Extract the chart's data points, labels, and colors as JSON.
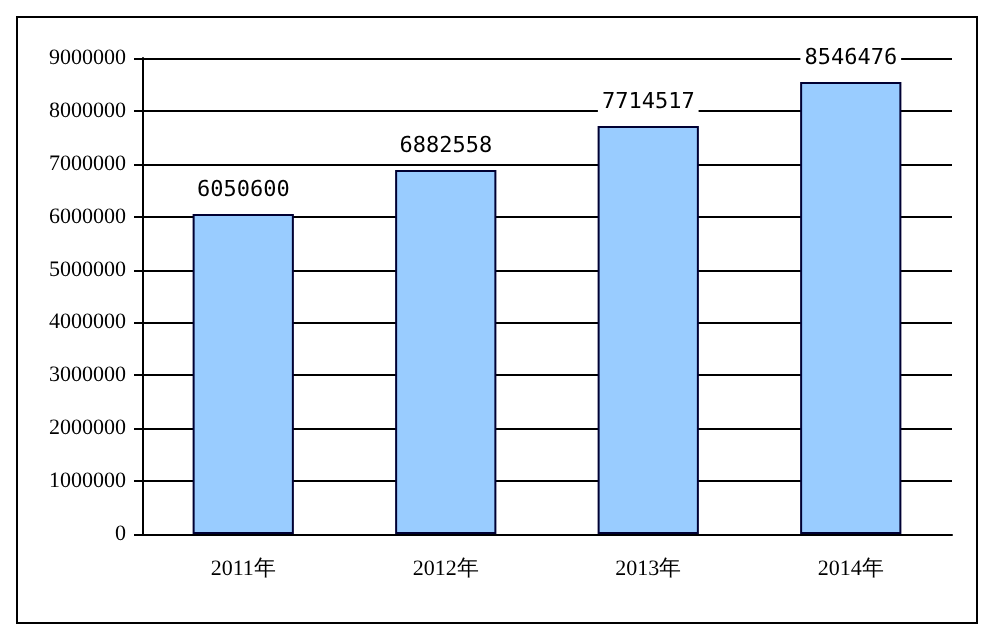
{
  "chart_data": {
    "type": "bar",
    "categories": [
      "2011年",
      "2012年",
      "2013年",
      "2014年"
    ],
    "values": [
      6050600,
      6882558,
      7714517,
      8546476
    ],
    "color": "#99ccff",
    "ylim": [
      0,
      9000000
    ],
    "yticks": [
      0,
      1000000,
      2000000,
      3000000,
      4000000,
      5000000,
      6000000,
      7000000,
      8000000,
      9000000
    ],
    "grid": "y",
    "data_labels": true
  }
}
